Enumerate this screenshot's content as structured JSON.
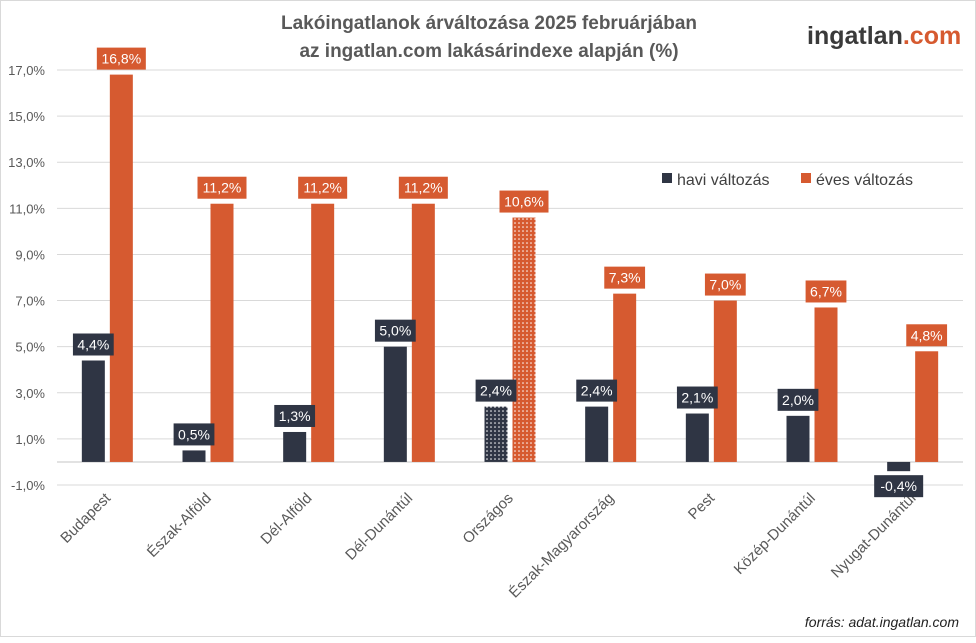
{
  "logo": {
    "part1": "ingatlan",
    "part2": ".com"
  },
  "source": "forrás: adat.ingatlan.com",
  "colors": {
    "havi": "#2f3544",
    "eves": "#d65a30",
    "grid": "#d9d9d9",
    "axis_text": "#595959",
    "title": "#595959",
    "logo_dark": "#3a3a3a"
  },
  "chart_data": {
    "type": "bar",
    "title": [
      "Lakóingatlanok árváltozása 2025 februárjában",
      "az ingatlan.com lakásárindexe alapján (%)"
    ],
    "categories": [
      "Budapest",
      "Észak-Alföld",
      "Dél-Alföld",
      "Dél-Dunántúl",
      "Országos",
      "Észak-Magyarország",
      "Pest",
      "Közép-Dunántúl",
      "Nyugat-Dunántúl"
    ],
    "series": [
      {
        "name": "havi változás",
        "values": [
          4.4,
          0.5,
          1.3,
          5.0,
          2.4,
          2.4,
          2.1,
          2.0,
          -0.4
        ],
        "labels": [
          "4,4%",
          "0,5%",
          "1,3%",
          "5,0%",
          "2,4%",
          "2,4%",
          "2,1%",
          "2,0%",
          "-0,4%"
        ]
      },
      {
        "name": "éves változás",
        "values": [
          16.8,
          11.2,
          11.2,
          11.2,
          10.6,
          7.3,
          7.0,
          6.7,
          4.8
        ],
        "labels": [
          "16,8%",
          "11,2%",
          "11,2%",
          "11,2%",
          "10,6%",
          "7,3%",
          "7,0%",
          "6,7%",
          "4,8%"
        ]
      }
    ],
    "highlighted_category": "Országos",
    "highlight_pattern": "dotted",
    "ylim": [
      -1.0,
      17.0
    ],
    "yticks": [
      -1,
      1,
      3,
      5,
      7,
      9,
      11,
      13,
      15,
      17
    ],
    "ytick_labels": [
      "-1,0%",
      "1,0%",
      "3,0%",
      "5,0%",
      "7,0%",
      "9,0%",
      "11,0%",
      "13,0%",
      "15,0%",
      "17,0%"
    ],
    "grid": true,
    "legend_position": "top-right",
    "xlabel": "",
    "ylabel": ""
  }
}
